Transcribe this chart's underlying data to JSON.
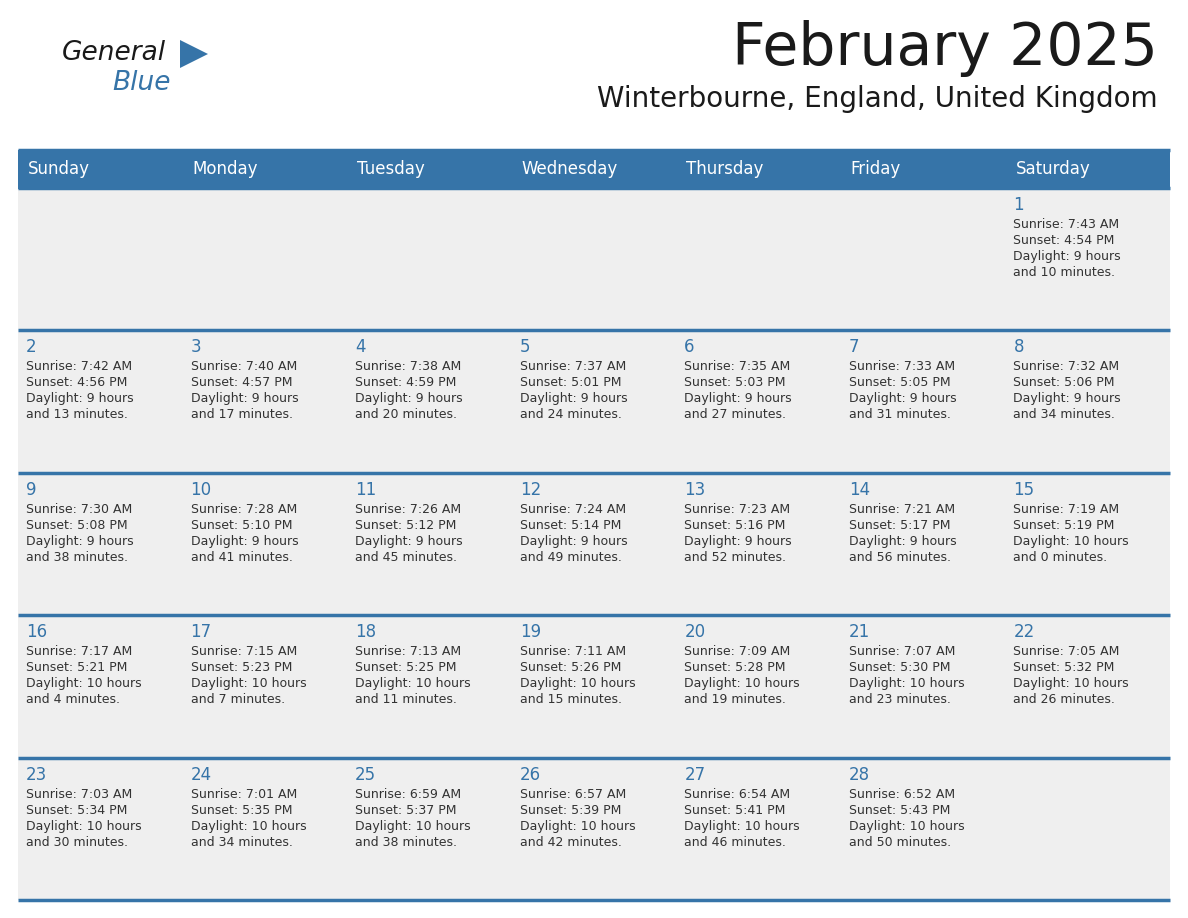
{
  "title": "February 2025",
  "subtitle": "Winterbourne, England, United Kingdom",
  "header_bg_color": "#3674A8",
  "header_text_color": "#FFFFFF",
  "cell_bg_color": "#EFEFEF",
  "grid_line_color": "#3674A8",
  "day_number_color": "#3674A8",
  "cell_text_color": "#333333",
  "days_of_week": [
    "Sunday",
    "Monday",
    "Tuesday",
    "Wednesday",
    "Thursday",
    "Friday",
    "Saturday"
  ],
  "logo_general_color": "#1a1a1a",
  "logo_blue_color": "#3674A8",
  "calendar_data": [
    [
      null,
      null,
      null,
      null,
      null,
      null,
      {
        "day": "1",
        "sunrise": "7:43 AM",
        "sunset": "4:54 PM",
        "daylight": "9 hours",
        "daylight2": "and 10 minutes."
      }
    ],
    [
      {
        "day": "2",
        "sunrise": "7:42 AM",
        "sunset": "4:56 PM",
        "daylight": "9 hours",
        "daylight2": "and 13 minutes."
      },
      {
        "day": "3",
        "sunrise": "7:40 AM",
        "sunset": "4:57 PM",
        "daylight": "9 hours",
        "daylight2": "and 17 minutes."
      },
      {
        "day": "4",
        "sunrise": "7:38 AM",
        "sunset": "4:59 PM",
        "daylight": "9 hours",
        "daylight2": "and 20 minutes."
      },
      {
        "day": "5",
        "sunrise": "7:37 AM",
        "sunset": "5:01 PM",
        "daylight": "9 hours",
        "daylight2": "and 24 minutes."
      },
      {
        "day": "6",
        "sunrise": "7:35 AM",
        "sunset": "5:03 PM",
        "daylight": "9 hours",
        "daylight2": "and 27 minutes."
      },
      {
        "day": "7",
        "sunrise": "7:33 AM",
        "sunset": "5:05 PM",
        "daylight": "9 hours",
        "daylight2": "and 31 minutes."
      },
      {
        "day": "8",
        "sunrise": "7:32 AM",
        "sunset": "5:06 PM",
        "daylight": "9 hours",
        "daylight2": "and 34 minutes."
      }
    ],
    [
      {
        "day": "9",
        "sunrise": "7:30 AM",
        "sunset": "5:08 PM",
        "daylight": "9 hours",
        "daylight2": "and 38 minutes."
      },
      {
        "day": "10",
        "sunrise": "7:28 AM",
        "sunset": "5:10 PM",
        "daylight": "9 hours",
        "daylight2": "and 41 minutes."
      },
      {
        "day": "11",
        "sunrise": "7:26 AM",
        "sunset": "5:12 PM",
        "daylight": "9 hours",
        "daylight2": "and 45 minutes."
      },
      {
        "day": "12",
        "sunrise": "7:24 AM",
        "sunset": "5:14 PM",
        "daylight": "9 hours",
        "daylight2": "and 49 minutes."
      },
      {
        "day": "13",
        "sunrise": "7:23 AM",
        "sunset": "5:16 PM",
        "daylight": "9 hours",
        "daylight2": "and 52 minutes."
      },
      {
        "day": "14",
        "sunrise": "7:21 AM",
        "sunset": "5:17 PM",
        "daylight": "9 hours",
        "daylight2": "and 56 minutes."
      },
      {
        "day": "15",
        "sunrise": "7:19 AM",
        "sunset": "5:19 PM",
        "daylight": "10 hours",
        "daylight2": "and 0 minutes."
      }
    ],
    [
      {
        "day": "16",
        "sunrise": "7:17 AM",
        "sunset": "5:21 PM",
        "daylight": "10 hours",
        "daylight2": "and 4 minutes."
      },
      {
        "day": "17",
        "sunrise": "7:15 AM",
        "sunset": "5:23 PM",
        "daylight": "10 hours",
        "daylight2": "and 7 minutes."
      },
      {
        "day": "18",
        "sunrise": "7:13 AM",
        "sunset": "5:25 PM",
        "daylight": "10 hours",
        "daylight2": "and 11 minutes."
      },
      {
        "day": "19",
        "sunrise": "7:11 AM",
        "sunset": "5:26 PM",
        "daylight": "10 hours",
        "daylight2": "and 15 minutes."
      },
      {
        "day": "20",
        "sunrise": "7:09 AM",
        "sunset": "5:28 PM",
        "daylight": "10 hours",
        "daylight2": "and 19 minutes."
      },
      {
        "day": "21",
        "sunrise": "7:07 AM",
        "sunset": "5:30 PM",
        "daylight": "10 hours",
        "daylight2": "and 23 minutes."
      },
      {
        "day": "22",
        "sunrise": "7:05 AM",
        "sunset": "5:32 PM",
        "daylight": "10 hours",
        "daylight2": "and 26 minutes."
      }
    ],
    [
      {
        "day": "23",
        "sunrise": "7:03 AM",
        "sunset": "5:34 PM",
        "daylight": "10 hours",
        "daylight2": "and 30 minutes."
      },
      {
        "day": "24",
        "sunrise": "7:01 AM",
        "sunset": "5:35 PM",
        "daylight": "10 hours",
        "daylight2": "and 34 minutes."
      },
      {
        "day": "25",
        "sunrise": "6:59 AM",
        "sunset": "5:37 PM",
        "daylight": "10 hours",
        "daylight2": "and 38 minutes."
      },
      {
        "day": "26",
        "sunrise": "6:57 AM",
        "sunset": "5:39 PM",
        "daylight": "10 hours",
        "daylight2": "and 42 minutes."
      },
      {
        "day": "27",
        "sunrise": "6:54 AM",
        "sunset": "5:41 PM",
        "daylight": "10 hours",
        "daylight2": "and 46 minutes."
      },
      {
        "day": "28",
        "sunrise": "6:52 AM",
        "sunset": "5:43 PM",
        "daylight": "10 hours",
        "daylight2": "and 50 minutes."
      },
      null
    ]
  ]
}
